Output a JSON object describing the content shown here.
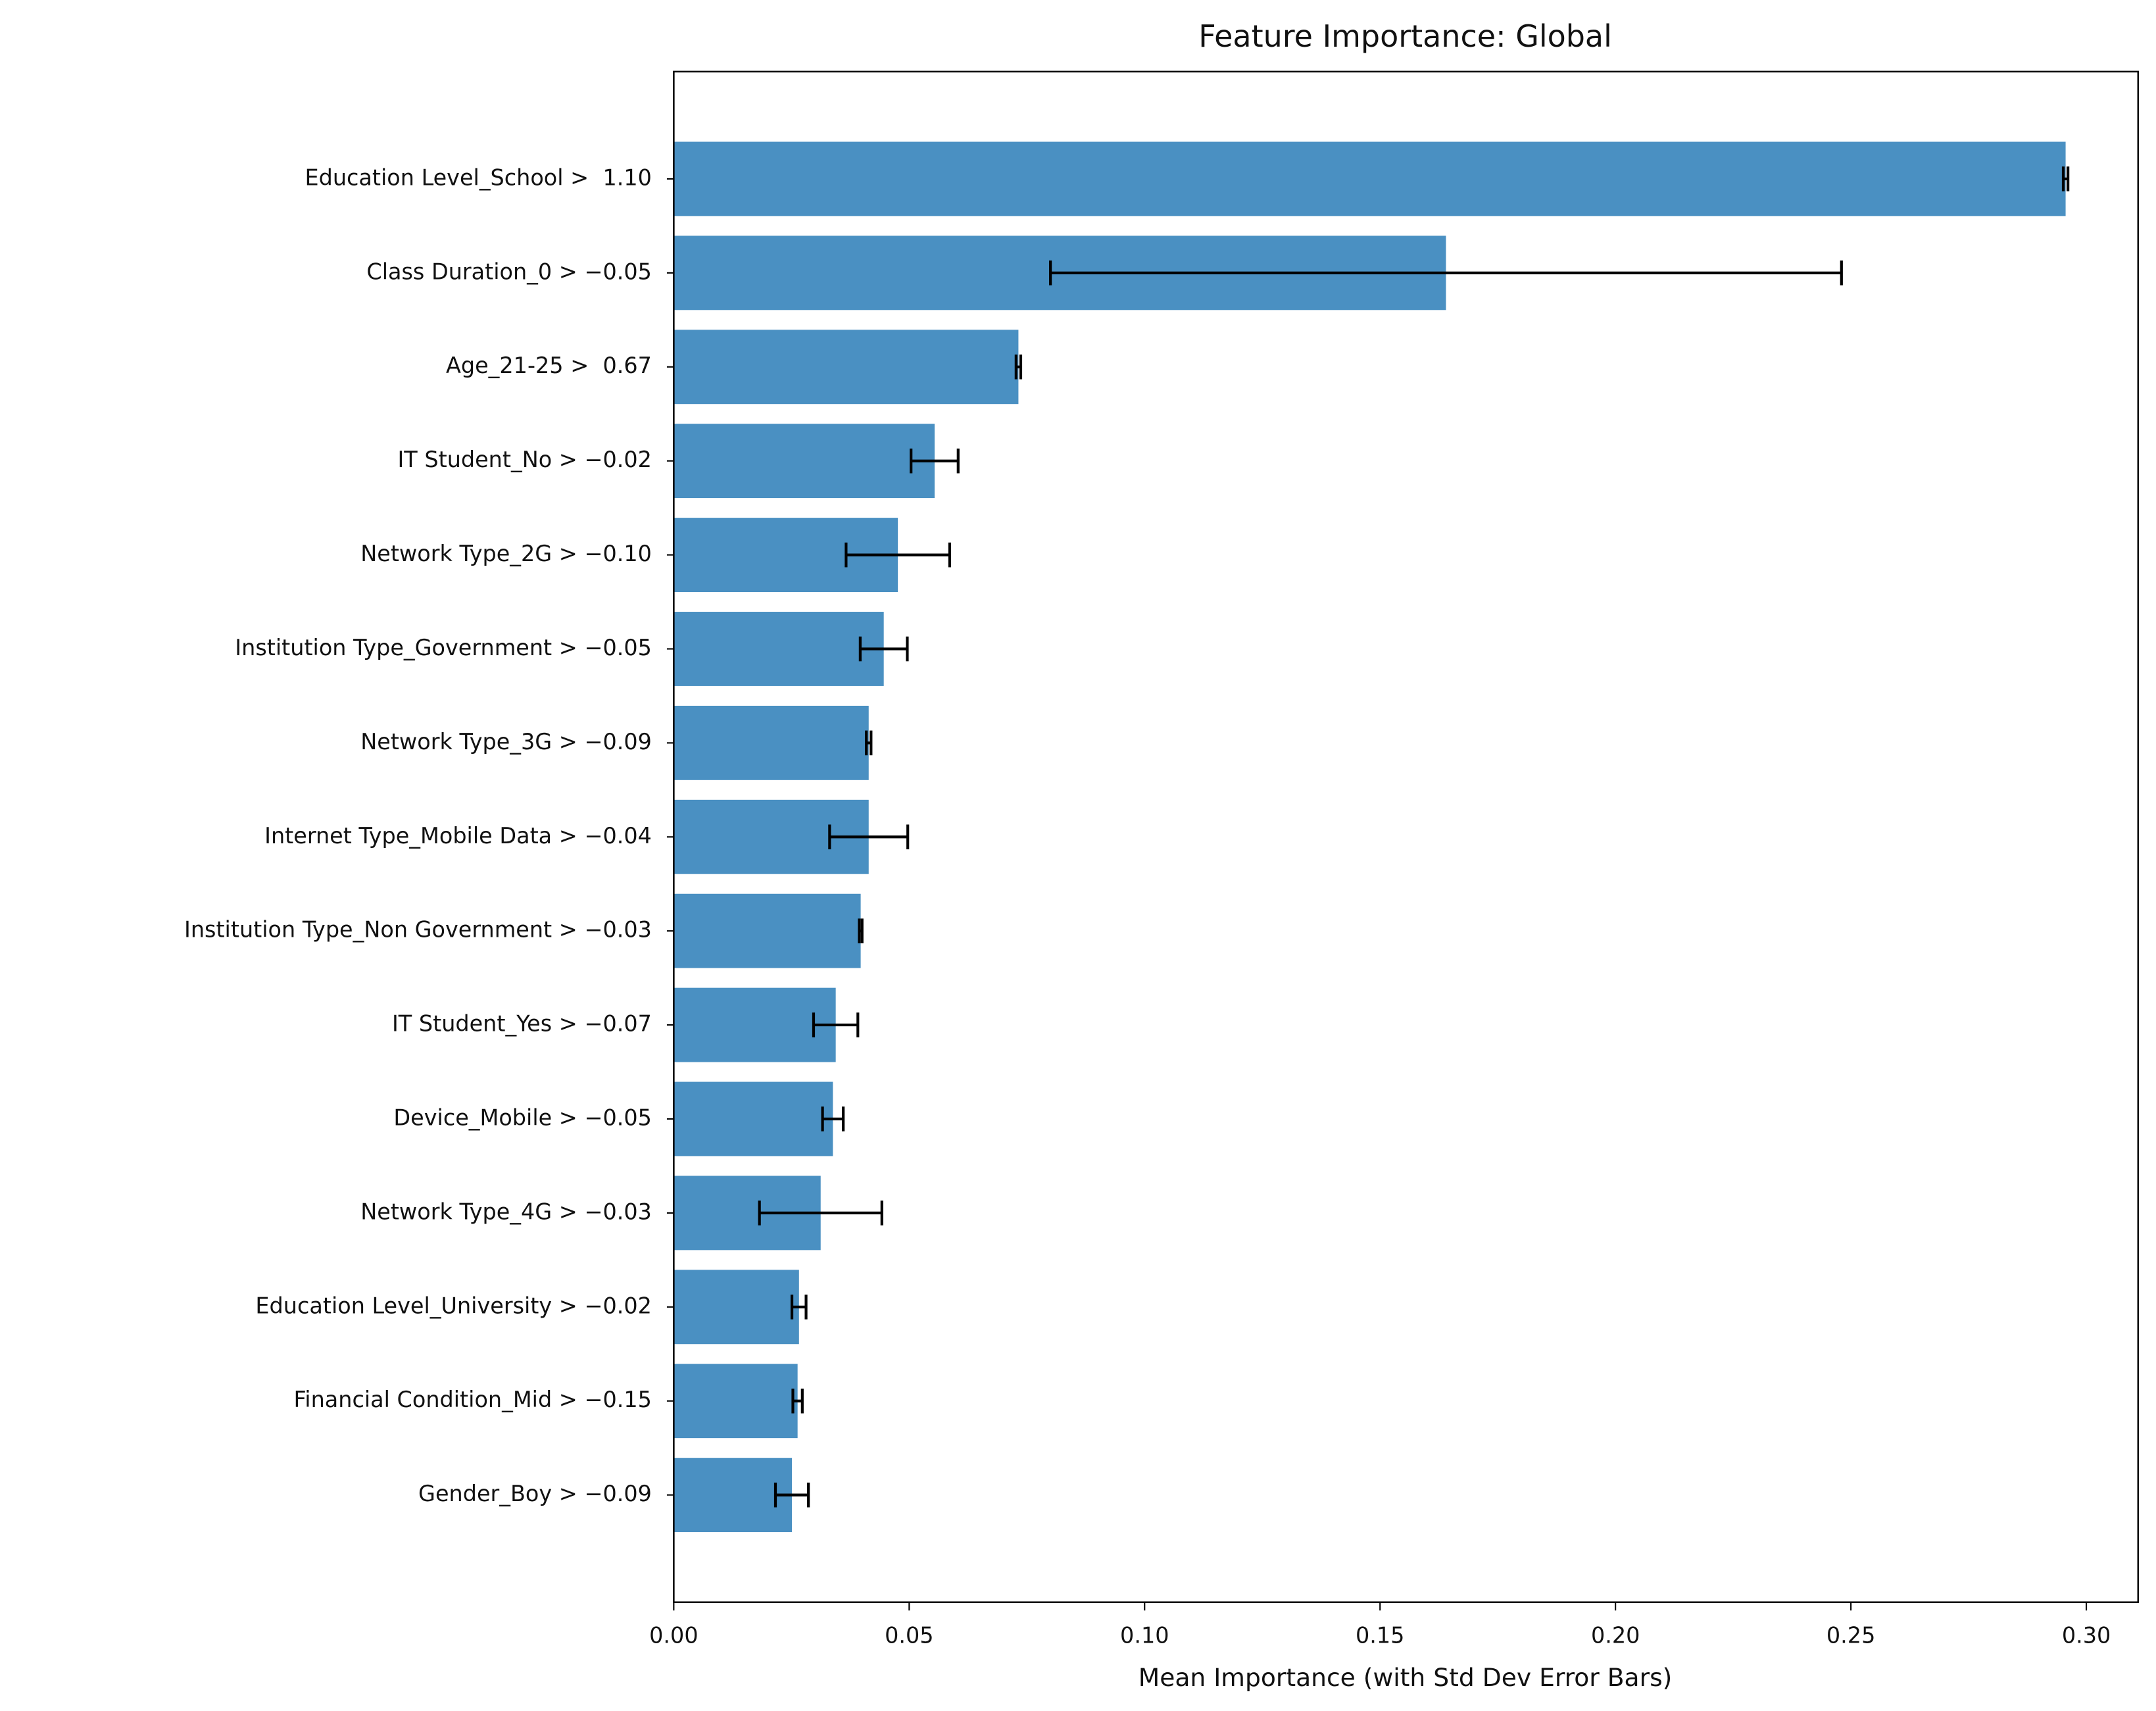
{
  "chart_data": {
    "type": "barh",
    "title": "Feature Importance: Global",
    "xlabel": "Mean Importance (with Std Dev Error Bars)",
    "categories": [
      "Education Level_School >  1.10",
      "Class Duration_0 > −0.05",
      "Age_21-25 >  0.67",
      "IT Student_No > −0.02",
      "Network Type_2G > −0.10",
      "Institution Type_Government > −0.05",
      "Network Type_3G > −0.09",
      "Internet Type_Mobile Data > −0.04",
      "Institution Type_Non Government > −0.03",
      "IT Student_Yes > −0.07",
      "Device_Mobile > −0.05",
      "Network Type_4G > −0.03",
      "Education Level_University > −0.02",
      "Financial Condition_Mid > −0.15",
      "Gender_Boy > −0.09"
    ],
    "values": [
      0.2956,
      0.164,
      0.0732,
      0.0554,
      0.0476,
      0.0446,
      0.0414,
      0.0414,
      0.0397,
      0.0344,
      0.0338,
      0.0312,
      0.0266,
      0.0263,
      0.0251
    ],
    "errors": [
      0.0005,
      0.084,
      0.0005,
      0.005,
      0.011,
      0.005,
      0.0005,
      0.0083,
      0.0003,
      0.0047,
      0.0022,
      0.013,
      0.0015,
      0.001,
      0.0035
    ],
    "color": "#4a90c2",
    "xlim": [
      0,
      0.311
    ],
    "xticks": [
      {
        "value": 0,
        "label": "0.00"
      },
      {
        "value": 0.05,
        "label": "0.05"
      },
      {
        "value": 0.1,
        "label": "0.10"
      },
      {
        "value": 0.15,
        "label": "0.15"
      },
      {
        "value": 0.2,
        "label": "0.20"
      },
      {
        "value": 0.25,
        "label": "0.25"
      },
      {
        "value": 0.3,
        "label": "0.30"
      }
    ]
  }
}
